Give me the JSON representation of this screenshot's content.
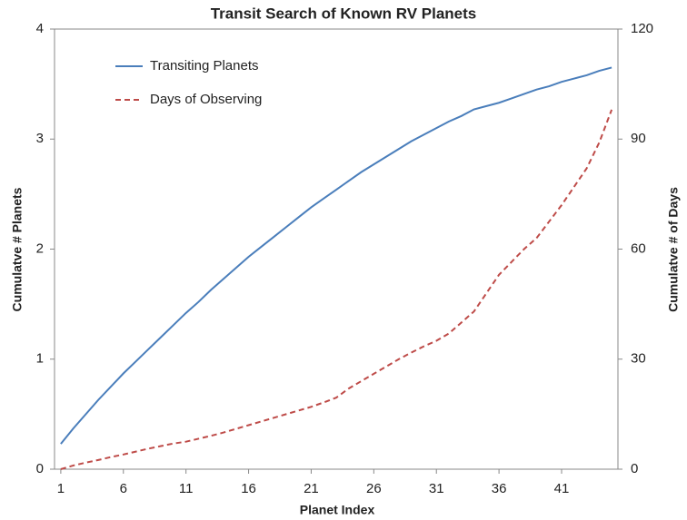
{
  "chart_data": {
    "type": "line",
    "title": "Transit Search of Known RV Planets",
    "x_label": "Planet Index",
    "y_label": "Cumulatve # Planets",
    "y2_label": "Cumulatve # of Days",
    "x": [
      1,
      2,
      3,
      4,
      5,
      6,
      7,
      8,
      9,
      10,
      11,
      12,
      13,
      14,
      15,
      16,
      17,
      18,
      19,
      20,
      21,
      22,
      23,
      24,
      25,
      26,
      27,
      28,
      29,
      30,
      31,
      32,
      33,
      34,
      35,
      36,
      37,
      38,
      39,
      40,
      41,
      42,
      43,
      44,
      45
    ],
    "xlim": [
      0.5,
      45.5
    ],
    "xticks": [
      1,
      6,
      11,
      16,
      21,
      26,
      31,
      36,
      41
    ],
    "ylim": [
      0,
      4
    ],
    "yticks": [
      0,
      1,
      2,
      3,
      4
    ],
    "y2lim": [
      0,
      120
    ],
    "y2ticks": [
      0,
      30,
      60,
      90,
      120
    ],
    "legend": "upper left",
    "series": [
      {
        "name": "Transiting Planets",
        "color": "#4a7ebb",
        "dash": false,
        "values": [
          0.23,
          0.37,
          0.5,
          0.63,
          0.75,
          0.87,
          0.98,
          1.09,
          1.2,
          1.31,
          1.42,
          1.52,
          1.63,
          1.73,
          1.83,
          1.93,
          2.02,
          2.11,
          2.2,
          2.29,
          2.38,
          2.46,
          2.54,
          2.62,
          2.7,
          2.77,
          2.84,
          2.91,
          2.98,
          3.04,
          3.1,
          3.16,
          3.21,
          3.27,
          3.3,
          3.33,
          3.37,
          3.41,
          3.45,
          3.48,
          3.52,
          3.55,
          3.58,
          3.62,
          3.65
        ]
      },
      {
        "name": "Days of Observing",
        "color": "#be4b48",
        "dash": true,
        "axis": "y2",
        "values": [
          0,
          1,
          1.8,
          2.5,
          3.3,
          4,
          4.8,
          5.6,
          6.3,
          7,
          7.5,
          8.3,
          9.1,
          10,
          11,
          12,
          13,
          14,
          15,
          16,
          17,
          18.2,
          19.5,
          22,
          24,
          26,
          28,
          30,
          31.8,
          33.5,
          35,
          37,
          40,
          43,
          48,
          53,
          56.5,
          60,
          63,
          67.5,
          72,
          77,
          82,
          89,
          98
        ]
      }
    ]
  }
}
